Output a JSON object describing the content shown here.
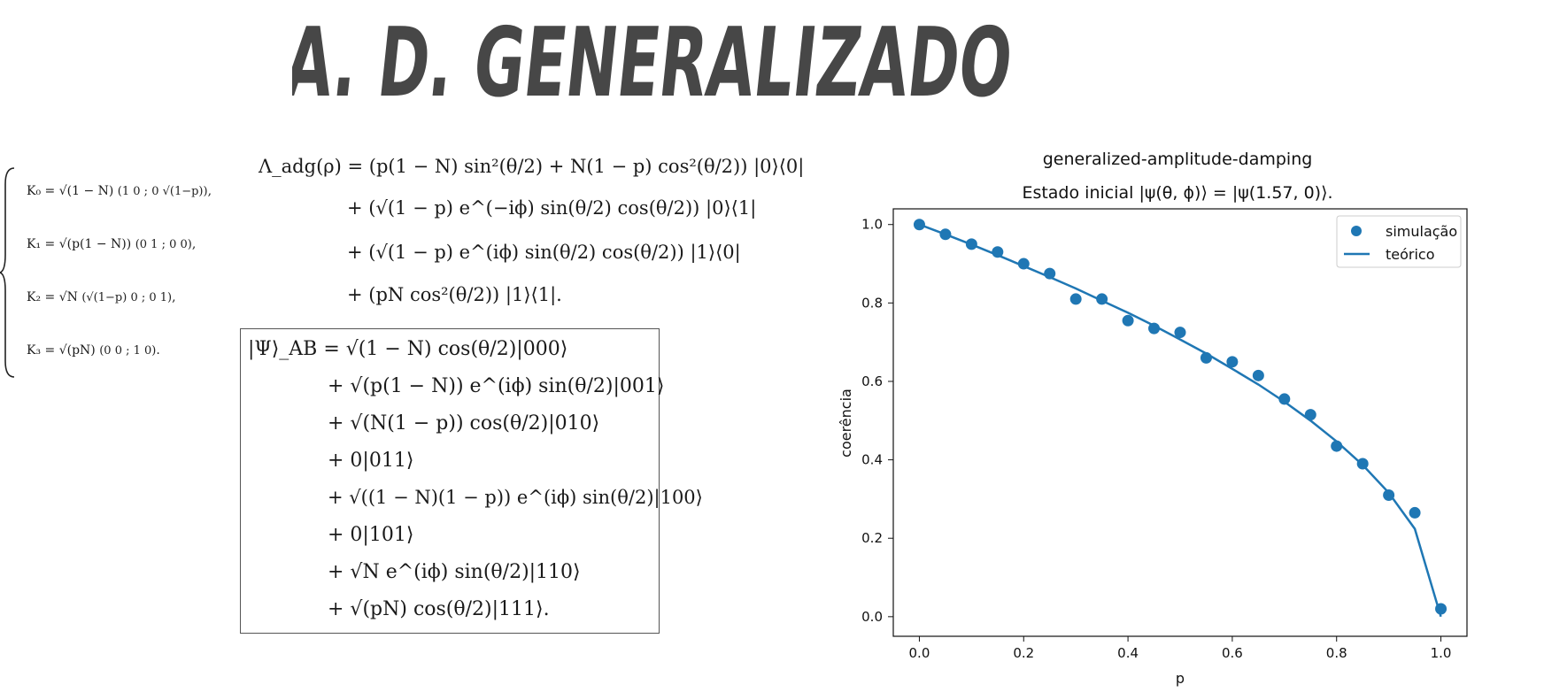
{
  "title": "A. D. GENERALIZADO",
  "kraus": [
    {
      "lhs": "K₀ = √(1 − N)",
      "matrix": "(1  0 ; 0  √(1−p))",
      "end": ","
    },
    {
      "lhs": "K₁ = √(p(1 − N))",
      "matrix": "(0  1 ; 0  0)",
      "end": ","
    },
    {
      "lhs": "K₂ = √N",
      "matrix": "(√(1−p)  0 ; 0  1)",
      "end": ","
    },
    {
      "lhs": "K₃ = √(pN)",
      "matrix": "(0  0 ; 1  0)",
      "end": "."
    }
  ],
  "channel": {
    "line1": "Λ_adg(ρ) = (p(1 − N) sin²(θ/2) + N(1 − p) cos²(θ/2)) |0⟩⟨0|",
    "line2": "+ (√(1 − p) e^(−iϕ) sin(θ/2) cos(θ/2)) |0⟩⟨1|",
    "line3": "+ (√(1 − p) e^(iϕ) sin(θ/2) cos(θ/2)) |1⟩⟨0|",
    "line4": "+ (pN cos²(θ/2)) |1⟩⟨1|."
  },
  "state": {
    "line1": "|Ψ⟩_AB = √(1 − N) cos(θ/2)|000⟩",
    "line2": "+ √(p(1 − N)) e^(iϕ) sin(θ/2)|001⟩",
    "line3": "+ √(N(1 − p)) cos(θ/2)|010⟩",
    "line4": "+ 0|011⟩",
    "line5": "+ √((1 − N)(1 − p)) e^(iϕ) sin(θ/2)|100⟩",
    "line6": "+ 0|101⟩",
    "line7": "+ √N e^(iϕ) sin(θ/2)|110⟩",
    "line8": "+ √(pN) cos(θ/2)|111⟩."
  },
  "chart_data": {
    "type": "scatter",
    "title": "generalized-amplitude-damping",
    "subtitle": "Estado inicial |ψ(θ, ϕ)⟩ = |ψ(1.57, 0)⟩.",
    "xlabel": "p",
    "ylabel": "coerência",
    "xlim": [
      -0.05,
      1.05
    ],
    "ylim": [
      -0.05,
      1.04
    ],
    "xticks": [
      "0.0",
      "0.2",
      "0.4",
      "0.6",
      "0.8",
      "1.0"
    ],
    "yticks": [
      "0.0",
      "0.2",
      "0.4",
      "0.6",
      "0.8",
      "1.0"
    ],
    "legend_position": "top-right",
    "color": "#1f77b4",
    "series": [
      {
        "name": "simulação",
        "kind": "scatter",
        "x": [
          0.0,
          0.05,
          0.1,
          0.15,
          0.2,
          0.25,
          0.3,
          0.35,
          0.4,
          0.45,
          0.5,
          0.55,
          0.6,
          0.65,
          0.7,
          0.75,
          0.8,
          0.85,
          0.9,
          0.95,
          1.0
        ],
        "y": [
          1.0,
          0.975,
          0.95,
          0.93,
          0.9,
          0.875,
          0.81,
          0.81,
          0.755,
          0.735,
          0.725,
          0.66,
          0.65,
          0.615,
          0.555,
          0.515,
          0.435,
          0.39,
          0.31,
          0.265,
          0.02
        ]
      },
      {
        "name": "teórico",
        "kind": "line",
        "x": [
          0.0,
          0.05,
          0.1,
          0.15,
          0.2,
          0.25,
          0.3,
          0.35,
          0.4,
          0.45,
          0.5,
          0.55,
          0.6,
          0.65,
          0.7,
          0.75,
          0.8,
          0.85,
          0.9,
          0.95,
          1.0
        ],
        "y": [
          1.0,
          0.975,
          0.949,
          0.922,
          0.894,
          0.866,
          0.837,
          0.806,
          0.775,
          0.742,
          0.707,
          0.671,
          0.632,
          0.592,
          0.548,
          0.5,
          0.447,
          0.387,
          0.316,
          0.224,
          0.0
        ]
      }
    ]
  }
}
